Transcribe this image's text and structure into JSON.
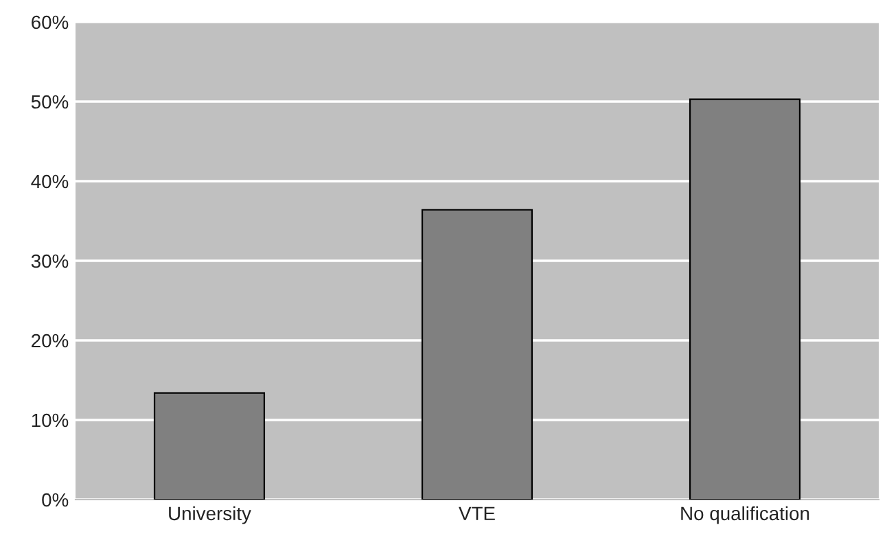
{
  "chart_data": {
    "type": "bar",
    "categories": [
      "University",
      "VTE",
      "No qualification"
    ],
    "values": [
      13.4,
      36.4,
      50.3
    ],
    "color": "#808080",
    "ylim": [
      0,
      60
    ],
    "yticks": [
      {
        "value": 0,
        "label": "0%"
      },
      {
        "value": 10,
        "label": "10%"
      },
      {
        "value": 20,
        "label": "20%"
      },
      {
        "value": 30,
        "label": "30%"
      },
      {
        "value": 40,
        "label": "40%"
      },
      {
        "value": 50,
        "label": "50%"
      },
      {
        "value": 60,
        "label": "60%"
      }
    ],
    "grid": "y"
  }
}
